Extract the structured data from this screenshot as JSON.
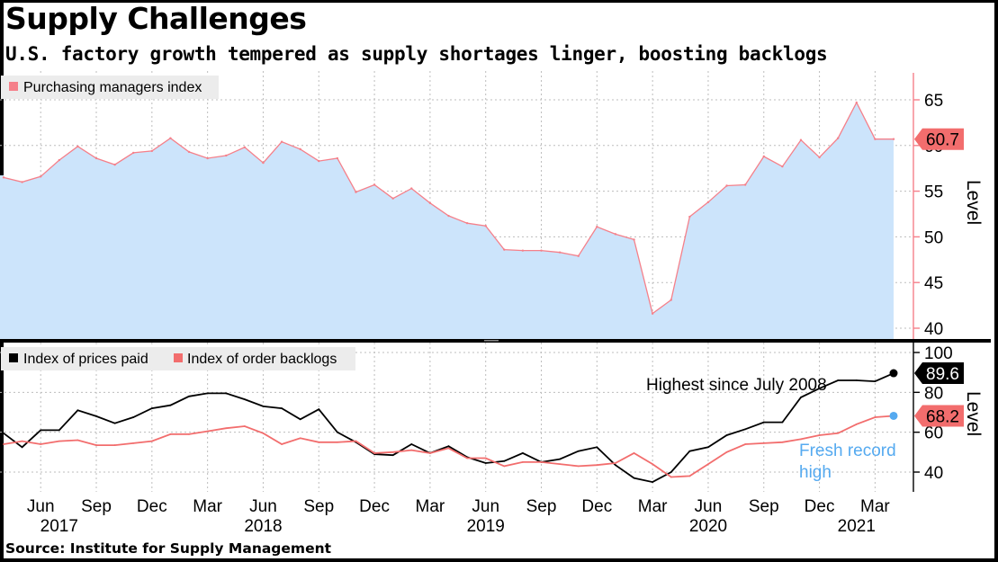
{
  "title": "Supply Challenges",
  "subtitle": "U.S. factory growth tempered as supply shortages linger, boosting backlogs",
  "source": "Source: Institute for Supply Management",
  "colors": {
    "pmi_line": "#f5808a",
    "pmi_fill": "#cce4fb",
    "prices_line": "#000000",
    "backlogs_line": "#f26d6d",
    "highlight_blue": "#55aaf0",
    "label_red": "#f26d6d",
    "label_black": "#000000"
  },
  "chart_data": [
    {
      "type": "area",
      "legend": [
        "Purchasing managers index"
      ],
      "ylabel": "Level",
      "ylim": [
        39,
        67
      ],
      "yticks": [
        40,
        45,
        50,
        55,
        60,
        65
      ],
      "last_value_label": "60.7",
      "series": [
        {
          "name": "Purchasing managers index",
          "x": [
            "2017-04",
            "2017-05",
            "2017-06",
            "2017-07",
            "2017-08",
            "2017-09",
            "2017-10",
            "2017-11",
            "2017-12",
            "2018-01",
            "2018-02",
            "2018-03",
            "2018-04",
            "2018-05",
            "2018-06",
            "2018-07",
            "2018-08",
            "2018-09",
            "2018-10",
            "2018-11",
            "2018-12",
            "2019-01",
            "2019-02",
            "2019-03",
            "2019-04",
            "2019-05",
            "2019-06",
            "2019-07",
            "2019-08",
            "2019-09",
            "2019-10",
            "2019-11",
            "2019-12",
            "2020-01",
            "2020-02",
            "2020-03",
            "2020-04",
            "2020-05",
            "2020-06",
            "2020-07",
            "2020-08",
            "2020-09",
            "2020-10",
            "2020-11",
            "2020-12",
            "2021-01",
            "2021-02",
            "2021-03",
            "2021-04"
          ],
          "values": [
            56.5,
            56.0,
            56.6,
            58.4,
            59.9,
            58.6,
            57.9,
            59.2,
            59.4,
            60.8,
            59.3,
            58.6,
            58.9,
            59.8,
            58.1,
            60.4,
            59.6,
            58.3,
            58.6,
            54.9,
            55.7,
            54.2,
            55.3,
            53.7,
            52.3,
            51.5,
            51.2,
            48.6,
            48.5,
            48.5,
            48.3,
            47.9,
            51.1,
            50.3,
            49.7,
            41.6,
            43.1,
            52.2,
            53.8,
            55.6,
            55.7,
            58.8,
            57.7,
            60.6,
            58.7,
            60.8,
            64.7,
            60.7,
            60.7
          ]
        }
      ]
    },
    {
      "type": "line",
      "legend": [
        "Index of prices paid",
        "Index of order backlogs"
      ],
      "ylabel": "Level",
      "ylim": [
        32,
        103
      ],
      "yticks": [
        40,
        60,
        80,
        100
      ],
      "last_value_labels": [
        "89.6",
        "68.2"
      ],
      "annotations": [
        "Highest since July 2008",
        "Fresh record",
        "high"
      ],
      "series": [
        {
          "name": "Index of prices paid",
          "x": [
            "2017-04",
            "2017-05",
            "2017-06",
            "2017-07",
            "2017-08",
            "2017-09",
            "2017-10",
            "2017-11",
            "2017-12",
            "2018-01",
            "2018-02",
            "2018-03",
            "2018-04",
            "2018-05",
            "2018-06",
            "2018-07",
            "2018-08",
            "2018-09",
            "2018-10",
            "2018-11",
            "2018-12",
            "2019-01",
            "2019-02",
            "2019-03",
            "2019-04",
            "2019-05",
            "2019-06",
            "2019-07",
            "2019-08",
            "2019-09",
            "2019-10",
            "2019-11",
            "2019-12",
            "2020-01",
            "2020-02",
            "2020-03",
            "2020-04",
            "2020-05",
            "2020-06",
            "2020-07",
            "2020-08",
            "2020-09",
            "2020-10",
            "2020-11",
            "2020-12",
            "2021-01",
            "2021-02",
            "2021-03",
            "2021-04"
          ],
          "values": [
            59.5,
            52.5,
            61.0,
            61.0,
            71.0,
            68.0,
            64.5,
            67.5,
            72.0,
            73.5,
            78.0,
            79.5,
            79.5,
            76.5,
            73.0,
            72.0,
            66.5,
            71.5,
            60.0,
            55.0,
            49.0,
            48.5,
            54.0,
            49.5,
            53.0,
            47.5,
            44.5,
            45.5,
            49.5,
            45.0,
            46.5,
            50.5,
            52.5,
            43.5,
            37.0,
            35.0,
            40.0,
            50.5,
            52.5,
            58.5,
            61.5,
            65.0,
            65.0,
            77.5,
            82.0,
            86.0,
            86.0,
            85.5,
            89.6
          ]
        },
        {
          "name": "Index of order backlogs",
          "x": [
            "2017-04",
            "2017-05",
            "2017-06",
            "2017-07",
            "2017-08",
            "2017-09",
            "2017-10",
            "2017-11",
            "2017-12",
            "2018-01",
            "2018-02",
            "2018-03",
            "2018-04",
            "2018-05",
            "2018-06",
            "2018-07",
            "2018-08",
            "2018-09",
            "2018-10",
            "2018-11",
            "2018-12",
            "2019-01",
            "2019-02",
            "2019-03",
            "2019-04",
            "2019-05",
            "2019-06",
            "2019-07",
            "2019-08",
            "2019-09",
            "2019-10",
            "2019-11",
            "2019-12",
            "2020-01",
            "2020-02",
            "2020-03",
            "2020-04",
            "2020-05",
            "2020-06",
            "2020-07",
            "2020-08",
            "2020-09",
            "2020-10",
            "2020-11",
            "2020-12",
            "2021-01",
            "2021-02",
            "2021-03",
            "2021-04"
          ],
          "values": [
            54.0,
            55.5,
            54.0,
            55.5,
            56.0,
            53.5,
            53.5,
            54.5,
            55.5,
            59.0,
            59.0,
            60.5,
            62.0,
            63.0,
            59.5,
            54.0,
            57.0,
            55.0,
            55.0,
            55.5,
            49.5,
            50.0,
            51.0,
            49.5,
            52.0,
            47.0,
            47.0,
            43.0,
            45.0,
            45.0,
            44.0,
            43.0,
            43.5,
            44.5,
            49.5,
            44.0,
            37.5,
            38.0,
            44.0,
            50.0,
            54.0,
            54.5,
            55.0,
            56.5,
            58.5,
            59.5,
            64.0,
            67.5,
            68.2
          ]
        }
      ]
    }
  ],
  "x_axis": {
    "month_ticks": [
      "Jun",
      "Sep",
      "Dec",
      "Mar",
      "Jun",
      "Sep",
      "Dec",
      "Mar",
      "Jun",
      "Sep",
      "Dec",
      "Mar",
      "Jun",
      "Sep",
      "Dec",
      "Mar"
    ],
    "month_tick_x": [
      "2017-06",
      "2017-09",
      "2017-12",
      "2018-03",
      "2018-06",
      "2018-09",
      "2018-12",
      "2019-03",
      "2019-06",
      "2019-09",
      "2019-12",
      "2020-03",
      "2020-06",
      "2020-09",
      "2020-12",
      "2021-03"
    ],
    "year_ticks": [
      "2017",
      "2018",
      "2019",
      "2020",
      "2021"
    ],
    "year_tick_x": [
      "2017-07",
      "2018-06",
      "2019-06",
      "2020-06",
      "2021-02"
    ]
  }
}
